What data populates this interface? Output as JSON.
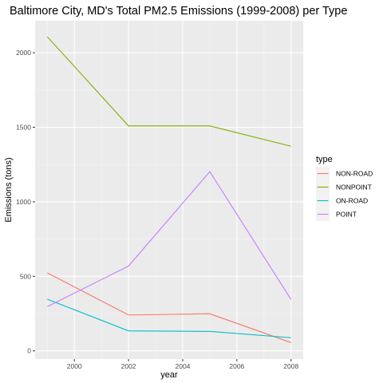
{
  "chart_data": {
    "type": "line",
    "title": "Baltimore City, MD's Total PM2.5 Emissions (1999-2008) per Type",
    "xlabel": "year",
    "ylabel": "Emissions (tons)",
    "x": [
      1999,
      2002,
      2005,
      2008
    ],
    "xlim": [
      1998.55,
      2008.45
    ],
    "ylim": [
      -55,
      2215
    ],
    "x_ticks": [
      2000,
      2002,
      2004,
      2006,
      2008
    ],
    "y_ticks": [
      0,
      500,
      1000,
      1500,
      2000
    ],
    "grid": true,
    "legend": {
      "title": "type",
      "placement": "right"
    },
    "series": [
      {
        "name": "NON-ROAD",
        "color": "#F8766D",
        "values": [
          522.94,
          240.85,
          248.93,
          55.82
        ]
      },
      {
        "name": "NONPOINT",
        "color": "#7CAE00",
        "values": [
          2107.63,
          1509.5,
          1509.5,
          1373.21
        ]
      },
      {
        "name": "ON-ROAD",
        "color": "#00BFC4",
        "values": [
          346.82,
          134.31,
          130.43,
          88.28
        ]
      },
      {
        "name": "POINT",
        "color": "#C77CFF",
        "values": [
          296.8,
          569.26,
          1202.49,
          344.98
        ]
      }
    ]
  }
}
